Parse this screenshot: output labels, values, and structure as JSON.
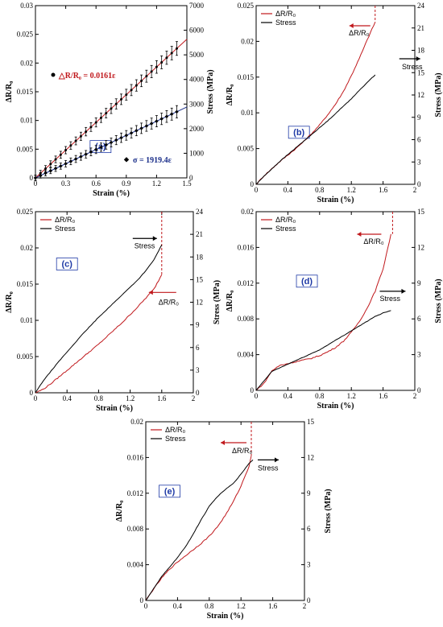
{
  "colors": {
    "resistance": "#c0181c",
    "stress": "#000000",
    "stress_a": "#1b2f8a",
    "label_text": "#1f3aa6",
    "label_box": "#1f3aa6"
  },
  "chart_data": [
    {
      "id": "a",
      "type": "line",
      "label": "(a)",
      "xlabel": "Strain (%)",
      "ylabel_left": "ΔR/R₀",
      "ylabel_right": "Stress (MPa)",
      "xlim": [
        0,
        1.5
      ],
      "ylim_left": [
        0,
        0.03
      ],
      "ylim_right": [
        0,
        7000
      ],
      "xticks": [
        0,
        0.3,
        0.6,
        0.9,
        1.2,
        1.5
      ],
      "xtick_labels": [
        "0",
        "0.3",
        "0.6",
        "0.9",
        "1.2",
        "1.5"
      ],
      "yticks_left": [
        0,
        0.005,
        0.01,
        0.015,
        0.02,
        0.025,
        0.03
      ],
      "ytick_labels_left": [
        "0",
        "0.005",
        "0.01",
        "0.015",
        "0.02",
        "0.025",
        "0.03"
      ],
      "yticks_right": [
        0,
        1000,
        2000,
        3000,
        4000,
        5000,
        6000,
        7000
      ],
      "ytick_labels_right": [
        "0",
        "1000",
        "2000",
        "3000",
        "4000",
        "5000",
        "6000",
        "7000"
      ],
      "annotations": {
        "resistance_fit": "△R/R₀ = 0.0161ε",
        "stress_fit": "σ = 1919.4ε"
      },
      "series": [
        {
          "name": "ΔR/R₀",
          "axis": "left",
          "slope": 0.0161,
          "error_bar": 0.0012,
          "x": [
            0,
            0.05,
            0.1,
            0.15,
            0.2,
            0.25,
            0.3,
            0.35,
            0.4,
            0.45,
            0.5,
            0.55,
            0.6,
            0.65,
            0.7,
            0.75,
            0.8,
            0.85,
            0.9,
            0.95,
            1.0,
            1.05,
            1.1,
            1.15,
            1.2,
            1.25,
            1.3,
            1.35,
            1.4
          ]
        },
        {
          "name": "Stress",
          "axis": "right",
          "slope": 1919.4,
          "error_bar": 250,
          "x": [
            0,
            0.05,
            0.1,
            0.15,
            0.2,
            0.25,
            0.3,
            0.35,
            0.4,
            0.45,
            0.5,
            0.55,
            0.6,
            0.65,
            0.7,
            0.75,
            0.8,
            0.85,
            0.9,
            0.95,
            1.0,
            1.05,
            1.1,
            1.15,
            1.2,
            1.25,
            1.3,
            1.35,
            1.4
          ]
        }
      ]
    },
    {
      "id": "b",
      "type": "line",
      "label": "(b)",
      "xlabel": "Strain (%)",
      "ylabel_left": "ΔR/R₀",
      "ylabel_right": "Stress (MPa)",
      "xlim": [
        0,
        2
      ],
      "ylim_left": [
        0,
        0.025
      ],
      "ylim_right": [
        0,
        24
      ],
      "xticks": [
        0,
        0.4,
        0.8,
        1.2,
        1.6,
        2
      ],
      "xtick_labels": [
        "0",
        "0.4",
        "0.8",
        "1.2",
        "1.6",
        "2"
      ],
      "yticks_left": [
        0,
        0.005,
        0.01,
        0.015,
        0.02,
        0.025
      ],
      "ytick_labels_left": [
        "0",
        "0.005",
        "0.01",
        "0.015",
        "0.02",
        "0.025"
      ],
      "yticks_right": [
        0,
        3,
        6,
        9,
        12,
        15,
        18,
        21,
        24
      ],
      "ytick_labels_right": [
        "0",
        "3",
        "6",
        "9",
        "12",
        "15",
        "18",
        "21",
        "24"
      ],
      "legend": [
        "ΔR/R₀",
        "Stress"
      ],
      "arrow_labels": {
        "resistance": "ΔR/R₀",
        "stress": "Stress"
      },
      "break_x": 1.5,
      "break_top": 0.025,
      "series": [
        {
          "name": "ΔR/R₀",
          "axis": "left",
          "x": [
            0,
            0.1,
            0.2,
            0.3,
            0.4,
            0.5,
            0.6,
            0.7,
            0.8,
            0.9,
            1.0,
            1.1,
            1.2,
            1.3,
            1.4,
            1.5
          ],
          "y": [
            0,
            0.0012,
            0.0022,
            0.0032,
            0.0041,
            0.005,
            0.006,
            0.0071,
            0.0083,
            0.0097,
            0.0112,
            0.013,
            0.0152,
            0.0176,
            0.0202,
            0.0227
          ]
        },
        {
          "name": "Stress",
          "axis": "right",
          "x": [
            0,
            0.1,
            0.2,
            0.3,
            0.4,
            0.5,
            0.6,
            0.7,
            0.8,
            0.9,
            1.0,
            1.1,
            1.2,
            1.3,
            1.4,
            1.5
          ],
          "y": [
            0,
            1.1,
            2.1,
            3.1,
            4.0,
            4.9,
            5.8,
            6.7,
            7.6,
            8.5,
            9.5,
            10.5,
            11.5,
            12.6,
            13.7,
            14.7
          ]
        }
      ]
    },
    {
      "id": "c",
      "type": "line",
      "label": "(c)",
      "xlabel": "Strain (%)",
      "ylabel_left": "ΔR/R₀",
      "ylabel_right": "Stress (MPa)",
      "xlim": [
        0,
        2
      ],
      "ylim_left": [
        0,
        0.025
      ],
      "ylim_right": [
        0,
        24
      ],
      "xticks": [
        0,
        0.4,
        0.8,
        1.2,
        1.6,
        2
      ],
      "xtick_labels": [
        "0",
        "0.4",
        "0.8",
        "1.2",
        "1.6",
        "2"
      ],
      "yticks_left": [
        0,
        0.005,
        0.01,
        0.015,
        0.02,
        0.025
      ],
      "ytick_labels_left": [
        "0",
        "0.005",
        "0.01",
        "0.015",
        "0.02",
        "0.025"
      ],
      "yticks_right": [
        0,
        3,
        6,
        9,
        12,
        15,
        18,
        21,
        24
      ],
      "ytick_labels_right": [
        "0",
        "3",
        "6",
        "9",
        "12",
        "15",
        "18",
        "21",
        "24"
      ],
      "legend": [
        "ΔR/R₀",
        "Stress"
      ],
      "arrow_labels": {
        "resistance": "ΔR/R₀",
        "stress": "Stress"
      },
      "break_x": 1.6,
      "break_top": 0.025,
      "series": [
        {
          "name": "ΔR/R₀",
          "axis": "left",
          "x": [
            0,
            0.1,
            0.2,
            0.3,
            0.4,
            0.5,
            0.6,
            0.7,
            0.8,
            0.9,
            1.0,
            1.1,
            1.2,
            1.3,
            1.4,
            1.5,
            1.6
          ],
          "y": [
            0,
            0.0005,
            0.0013,
            0.0022,
            0.0031,
            0.004,
            0.0049,
            0.0058,
            0.0067,
            0.0077,
            0.0087,
            0.0097,
            0.0108,
            0.0119,
            0.0131,
            0.0143,
            0.0163
          ]
        },
        {
          "name": "Stress",
          "axis": "right",
          "x": [
            0,
            0.1,
            0.2,
            0.3,
            0.4,
            0.5,
            0.6,
            0.7,
            0.8,
            0.9,
            1.0,
            1.1,
            1.2,
            1.3,
            1.4,
            1.5,
            1.6
          ],
          "y": [
            0,
            1.6,
            2.9,
            4.2,
            5.4,
            6.6,
            7.8,
            8.9,
            10.0,
            11.0,
            12.0,
            13.0,
            14.0,
            15.0,
            16.2,
            17.6,
            19.6
          ]
        }
      ]
    },
    {
      "id": "d",
      "type": "line",
      "label": "(d)",
      "xlabel": "Strain (%)",
      "ylabel_left": "ΔR/R₀",
      "ylabel_right": "Stress (MPa)",
      "xlim": [
        0,
        2
      ],
      "ylim_left": [
        0,
        0.02
      ],
      "ylim_right": [
        0,
        15
      ],
      "xticks": [
        0,
        0.4,
        0.8,
        1.2,
        1.6,
        2
      ],
      "xtick_labels": [
        "0",
        "0.4",
        "0.8",
        "1.2",
        "1.6",
        "2"
      ],
      "yticks_left": [
        0,
        0.004,
        0.008,
        0.012,
        0.016,
        0.02
      ],
      "ytick_labels_left": [
        "0",
        "0.004",
        "0.008",
        "0.012",
        "0.016",
        "0.02"
      ],
      "yticks_right": [
        0,
        3,
        6,
        9,
        12,
        15
      ],
      "ytick_labels_right": [
        "0",
        "3",
        "6",
        "9",
        "12",
        "15"
      ],
      "legend": [
        "ΔR/R₀",
        "Stress"
      ],
      "arrow_labels": {
        "resistance": "ΔR/R₀",
        "stress": "Stress"
      },
      "break_x": 1.72,
      "break_top": 0.02,
      "series": [
        {
          "name": "ΔR/R₀",
          "axis": "left",
          "x": [
            0,
            0.1,
            0.2,
            0.3,
            0.4,
            0.5,
            0.6,
            0.7,
            0.8,
            0.9,
            1.0,
            1.1,
            1.2,
            1.3,
            1.4,
            1.5,
            1.6,
            1.7
          ],
          "y": [
            0,
            0.0008,
            0.0022,
            0.0028,
            0.003,
            0.0032,
            0.0034,
            0.0036,
            0.0039,
            0.0043,
            0.0048,
            0.0055,
            0.0065,
            0.0077,
            0.0092,
            0.0111,
            0.0136,
            0.0175
          ]
        },
        {
          "name": "Stress",
          "axis": "right",
          "x": [
            0,
            0.1,
            0.2,
            0.3,
            0.4,
            0.5,
            0.6,
            0.7,
            0.8,
            0.9,
            1.0,
            1.1,
            1.2,
            1.3,
            1.4,
            1.5,
            1.6,
            1.7
          ],
          "y": [
            0,
            0.8,
            1.6,
            1.9,
            2.2,
            2.5,
            2.8,
            3.1,
            3.4,
            3.8,
            4.2,
            4.6,
            5.0,
            5.4,
            5.8,
            6.2,
            6.5,
            6.7
          ]
        }
      ]
    },
    {
      "id": "e",
      "type": "line",
      "label": "(e)",
      "xlabel": "Strain (%)",
      "ylabel_left": "ΔR/R₀",
      "ylabel_right": "Stress (MPa)",
      "xlim": [
        0,
        2
      ],
      "ylim_left": [
        0,
        0.02
      ],
      "ylim_right": [
        0,
        15
      ],
      "xticks": [
        0,
        0.4,
        0.8,
        1.2,
        1.6,
        2
      ],
      "xtick_labels": [
        "0",
        "0.4",
        "0.8",
        "1.2",
        "1.6",
        "2"
      ],
      "yticks_left": [
        0,
        0.004,
        0.008,
        0.012,
        0.016,
        0.02
      ],
      "ytick_labels_left": [
        "0",
        "0.004",
        "0.008",
        "0.012",
        "0.016",
        "0.02"
      ],
      "yticks_right": [
        0,
        3,
        6,
        9,
        12,
        15
      ],
      "ytick_labels_right": [
        "0",
        "3",
        "6",
        "9",
        "12",
        "15"
      ],
      "legend": [
        "ΔR/R₀",
        "Stress"
      ],
      "arrow_labels": {
        "resistance": "ΔR/R₀",
        "stress": "Stress"
      },
      "break_x": 1.33,
      "break_top": 0.02,
      "series": [
        {
          "name": "ΔR/R₀",
          "axis": "left",
          "x": [
            0,
            0.1,
            0.2,
            0.3,
            0.4,
            0.5,
            0.6,
            0.7,
            0.8,
            0.9,
            1.0,
            1.1,
            1.2,
            1.3,
            1.33
          ],
          "y": [
            0,
            0.0013,
            0.0025,
            0.0035,
            0.0043,
            0.005,
            0.0057,
            0.0064,
            0.0072,
            0.0082,
            0.0095,
            0.011,
            0.0128,
            0.015,
            0.0162
          ]
        },
        {
          "name": "Stress",
          "axis": "right",
          "x": [
            0,
            0.1,
            0.2,
            0.3,
            0.4,
            0.5,
            0.6,
            0.7,
            0.8,
            0.9,
            1.0,
            1.1,
            1.2,
            1.3,
            1.35
          ],
          "y": [
            0,
            1.0,
            2.0,
            2.8,
            3.6,
            4.5,
            5.6,
            6.8,
            7.9,
            8.7,
            9.3,
            9.8,
            10.6,
            11.5,
            11.8
          ]
        }
      ]
    }
  ]
}
